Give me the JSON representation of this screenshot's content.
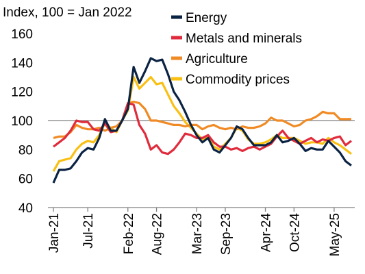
{
  "chart_data": {
    "type": "line",
    "title": "Index, 100 = Jan 2022",
    "categories": [
      "Jan-21",
      null,
      null,
      null,
      null,
      null,
      "Jul-21",
      null,
      null,
      null,
      null,
      null,
      null,
      "Feb-22",
      null,
      null,
      null,
      null,
      "Aug-22",
      null,
      null,
      null,
      null,
      null,
      null,
      "Mar-23",
      null,
      null,
      null,
      null,
      "Sep-23",
      null,
      null,
      null,
      null,
      null,
      null,
      "Apr-24",
      null,
      null,
      null,
      null,
      "Oct-24",
      null,
      null,
      null,
      null,
      null,
      null,
      "May-25",
      null,
      null,
      null
    ],
    "series": [
      {
        "name": "Energy",
        "color": "#0b2343",
        "values": [
          57,
          66,
          66,
          67,
          72,
          78,
          81,
          80,
          88,
          101,
          93,
          93,
          100,
          108,
          137,
          126,
          134,
          143,
          141,
          142,
          132,
          120,
          114,
          106,
          97,
          90,
          85,
          88,
          80,
          78,
          83,
          88,
          96,
          94,
          88,
          83,
          83,
          83,
          85,
          90,
          85,
          86,
          88,
          84,
          79,
          81,
          80,
          80,
          86,
          82,
          78,
          72,
          69
        ]
      },
      {
        "name": "Metals and minerals",
        "color": "#e02b3c",
        "values": [
          82,
          85,
          88,
          93,
          100,
          99,
          99,
          94,
          93,
          98,
          92,
          93,
          100,
          112,
          111,
          97,
          91,
          80,
          83,
          78,
          77,
          80,
          85,
          91,
          90,
          88,
          88,
          90,
          85,
          82,
          82,
          80,
          81,
          79,
          81,
          82,
          80,
          82,
          84,
          89,
          93,
          88,
          86,
          84,
          86,
          88,
          85,
          87,
          86,
          88,
          89,
          83,
          86
        ]
      },
      {
        "name": "Agriculture",
        "color": "#f08a24",
        "values": [
          88,
          89,
          89,
          92,
          97,
          95,
          94,
          94,
          95,
          93,
          95,
          96,
          100,
          112,
          113,
          112,
          108,
          100,
          100,
          99,
          98,
          97,
          97,
          96,
          97,
          97,
          94,
          96,
          97,
          95,
          94,
          95,
          94,
          96,
          95,
          95,
          96,
          98,
          102,
          100,
          100,
          98,
          96,
          97,
          100,
          101,
          103,
          106,
          105,
          105,
          101,
          101,
          101
        ]
      },
      {
        "name": "Commodity prices",
        "color": "#f9c013",
        "values": [
          65,
          72,
          73,
          74,
          80,
          84,
          86,
          85,
          90,
          98,
          95,
          92,
          100,
          107,
          130,
          122,
          126,
          130,
          125,
          126,
          118,
          110,
          105,
          99,
          95,
          91,
          87,
          89,
          82,
          80,
          84,
          88,
          95,
          93,
          87,
          84,
          84,
          85,
          87,
          90,
          88,
          88,
          88,
          86,
          84,
          85,
          85,
          84,
          88,
          85,
          83,
          80,
          77
        ]
      }
    ],
    "reference_line": 100,
    "ylim": [
      40,
      160
    ],
    "yticks": [
      40,
      60,
      80,
      100,
      120,
      140,
      160
    ],
    "grid": false,
    "legend": "top-right"
  }
}
